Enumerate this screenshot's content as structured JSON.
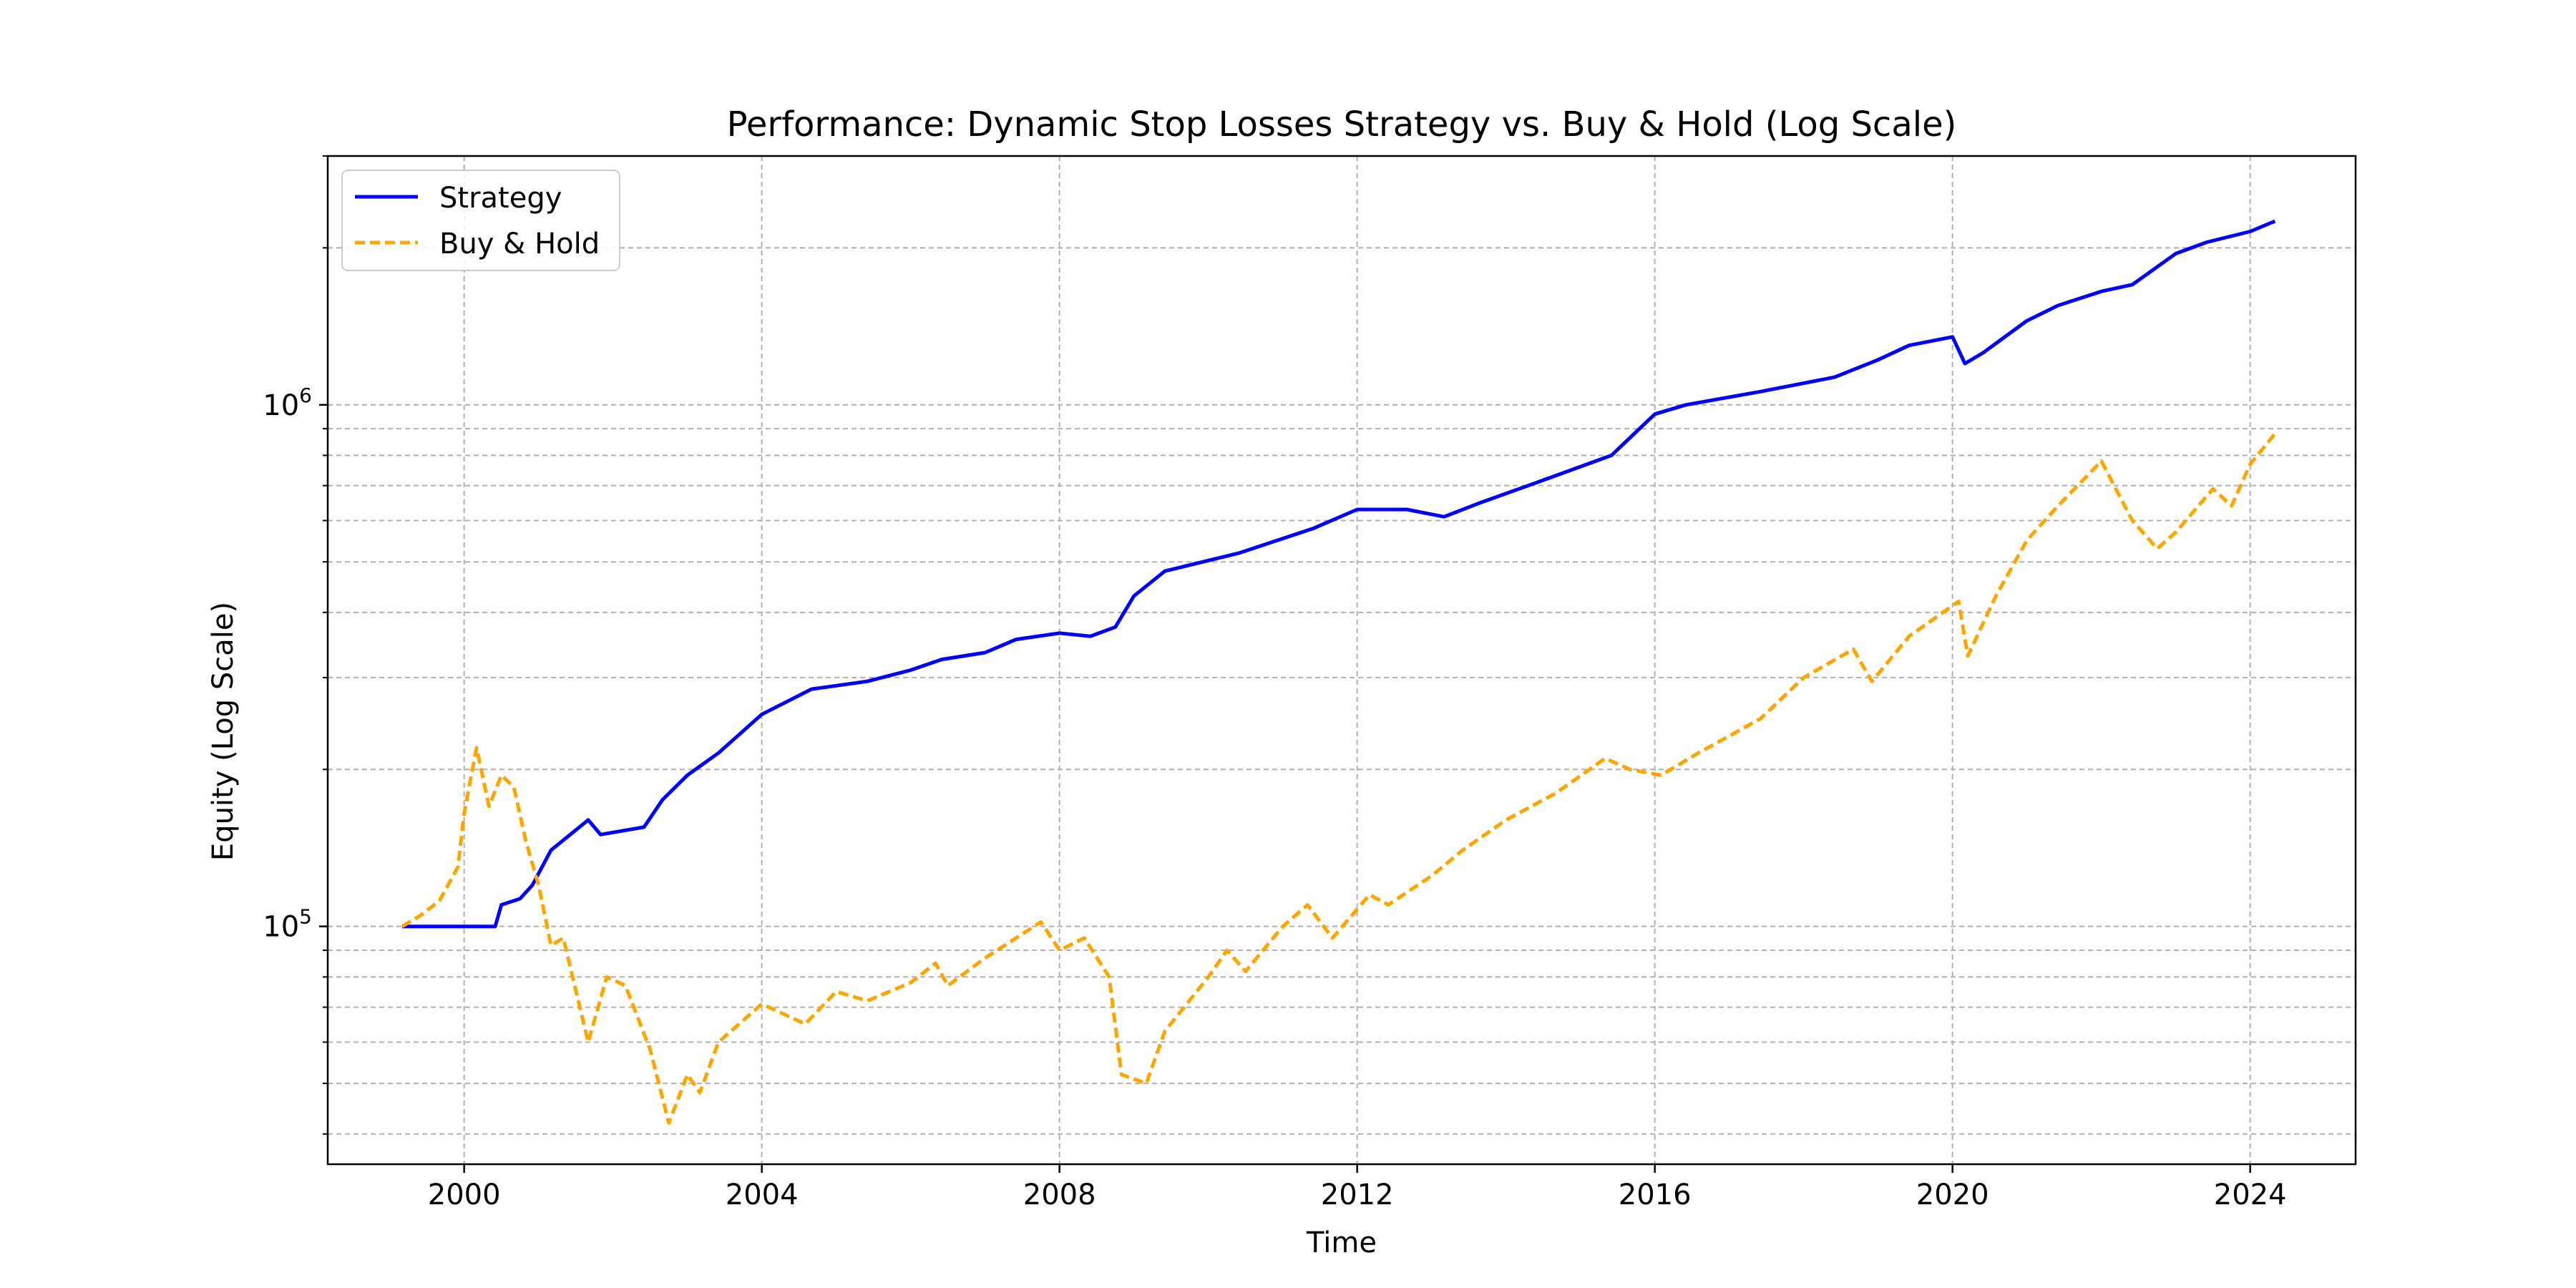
{
  "chart_data": {
    "type": "line",
    "title": "Performance: Dynamic Stop Losses Strategy vs. Buy & Hold (Log Scale)",
    "xlabel": "Time",
    "ylabel": "Equity (Log Scale)",
    "x_type": "date",
    "xlim": [
      "1998-03-01",
      "2025-06-01"
    ],
    "ylim": [
      35000,
      3000000
    ],
    "yscale": "log",
    "grid": "on (major and minor, dashed)",
    "legend_position": "top-left",
    "x_tick_labels": [
      "2000",
      "2004",
      "2008",
      "2012",
      "2016",
      "2020",
      "2024"
    ],
    "y_tick_labels": [
      {
        "base": "10",
        "exponent": "5",
        "value": 100000
      },
      {
        "base": "10",
        "exponent": "6",
        "value": 1000000
      }
    ],
    "series": [
      {
        "name": "Strategy",
        "color": "#0000ff",
        "line_style": "solid",
        "points": [
          [
            "1999-03-01",
            100000
          ],
          [
            "1999-06-01",
            100000
          ],
          [
            "2000-06-01",
            100000
          ],
          [
            "2000-07-01",
            110000
          ],
          [
            "2000-10-01",
            113000
          ],
          [
            "2000-12-01",
            120000
          ],
          [
            "2001-03-01",
            140000
          ],
          [
            "2001-09-01",
            160000
          ],
          [
            "2001-11-01",
            150000
          ],
          [
            "2002-06-01",
            155000
          ],
          [
            "2002-09-01",
            175000
          ],
          [
            "2003-01-01",
            195000
          ],
          [
            "2003-06-01",
            215000
          ],
          [
            "2004-01-01",
            255000
          ],
          [
            "2004-09-01",
            285000
          ],
          [
            "2005-06-01",
            295000
          ],
          [
            "2006-01-01",
            310000
          ],
          [
            "2006-06-01",
            325000
          ],
          [
            "2007-01-01",
            335000
          ],
          [
            "2007-06-01",
            355000
          ],
          [
            "2008-01-01",
            365000
          ],
          [
            "2008-06-01",
            360000
          ],
          [
            "2008-10-01",
            375000
          ],
          [
            "2009-01-01",
            430000
          ],
          [
            "2009-06-01",
            480000
          ],
          [
            "2010-06-01",
            520000
          ],
          [
            "2011-06-01",
            580000
          ],
          [
            "2012-01-01",
            630000
          ],
          [
            "2012-09-01",
            630000
          ],
          [
            "2013-03-01",
            610000
          ],
          [
            "2013-09-01",
            650000
          ],
          [
            "2014-06-01",
            710000
          ],
          [
            "2015-06-01",
            800000
          ],
          [
            "2016-01-01",
            960000
          ],
          [
            "2016-06-01",
            1000000
          ],
          [
            "2017-06-01",
            1060000
          ],
          [
            "2018-06-01",
            1130000
          ],
          [
            "2019-01-01",
            1220000
          ],
          [
            "2019-06-01",
            1300000
          ],
          [
            "2020-01-01",
            1350000
          ],
          [
            "2020-03-01",
            1200000
          ],
          [
            "2020-06-01",
            1260000
          ],
          [
            "2021-01-01",
            1450000
          ],
          [
            "2021-06-01",
            1550000
          ],
          [
            "2022-01-01",
            1650000
          ],
          [
            "2022-06-01",
            1700000
          ],
          [
            "2023-01-01",
            1950000
          ],
          [
            "2023-06-01",
            2050000
          ],
          [
            "2024-01-01",
            2150000
          ],
          [
            "2024-05-01",
            2250000
          ]
        ]
      },
      {
        "name": "Buy & Hold",
        "color": "#ffa500",
        "line_style": "dashed",
        "points": [
          [
            "1999-03-01",
            100000
          ],
          [
            "1999-06-01",
            105000
          ],
          [
            "1999-09-01",
            112000
          ],
          [
            "1999-12-01",
            130000
          ],
          [
            "2000-01-01",
            165000
          ],
          [
            "2000-03-01",
            220000
          ],
          [
            "2000-05-01",
            170000
          ],
          [
            "2000-07-01",
            195000
          ],
          [
            "2000-09-01",
            185000
          ],
          [
            "2000-11-01",
            145000
          ],
          [
            "2001-01-01",
            120000
          ],
          [
            "2001-03-01",
            92000
          ],
          [
            "2001-05-01",
            95000
          ],
          [
            "2001-09-01",
            60000
          ],
          [
            "2001-12-01",
            80000
          ],
          [
            "2002-03-01",
            77000
          ],
          [
            "2002-07-01",
            58000
          ],
          [
            "2002-10-01",
            42000
          ],
          [
            "2003-01-01",
            52000
          ],
          [
            "2003-03-01",
            48000
          ],
          [
            "2003-06-01",
            60000
          ],
          [
            "2004-01-01",
            71000
          ],
          [
            "2004-08-01",
            65000
          ],
          [
            "2005-01-01",
            75000
          ],
          [
            "2005-06-01",
            72000
          ],
          [
            "2006-01-01",
            78000
          ],
          [
            "2006-05-01",
            85000
          ],
          [
            "2006-07-01",
            77000
          ],
          [
            "2007-01-01",
            87000
          ],
          [
            "2007-06-01",
            95000
          ],
          [
            "2007-10-01",
            102000
          ],
          [
            "2008-01-01",
            90000
          ],
          [
            "2008-05-01",
            95000
          ],
          [
            "2008-09-01",
            80000
          ],
          [
            "2008-11-01",
            52000
          ],
          [
            "2009-03-01",
            50000
          ],
          [
            "2009-06-01",
            63000
          ],
          [
            "2010-01-01",
            80000
          ],
          [
            "2010-04-01",
            90000
          ],
          [
            "2010-07-01",
            82000
          ],
          [
            "2011-01-01",
            100000
          ],
          [
            "2011-05-01",
            110000
          ],
          [
            "2011-09-01",
            95000
          ],
          [
            "2012-03-01",
            115000
          ],
          [
            "2012-06-01",
            110000
          ],
          [
            "2013-01-01",
            125000
          ],
          [
            "2013-06-01",
            140000
          ],
          [
            "2014-01-01",
            160000
          ],
          [
            "2014-09-01",
            180000
          ],
          [
            "2015-05-01",
            210000
          ],
          [
            "2015-09-01",
            200000
          ],
          [
            "2016-02-01",
            195000
          ],
          [
            "2016-08-01",
            215000
          ],
          [
            "2017-06-01",
            250000
          ],
          [
            "2018-01-01",
            300000
          ],
          [
            "2018-09-01",
            340000
          ],
          [
            "2018-12-01",
            295000
          ],
          [
            "2019-06-01",
            360000
          ],
          [
            "2020-02-01",
            420000
          ],
          [
            "2020-03-15",
            330000
          ],
          [
            "2020-08-01",
            430000
          ],
          [
            "2021-01-01",
            550000
          ],
          [
            "2021-06-01",
            640000
          ],
          [
            "2022-01-01",
            780000
          ],
          [
            "2022-06-01",
            600000
          ],
          [
            "2022-10-01",
            530000
          ],
          [
            "2023-01-01",
            570000
          ],
          [
            "2023-07-01",
            690000
          ],
          [
            "2023-10-01",
            640000
          ],
          [
            "2024-01-01",
            770000
          ],
          [
            "2024-05-01",
            880000
          ]
        ]
      }
    ]
  }
}
